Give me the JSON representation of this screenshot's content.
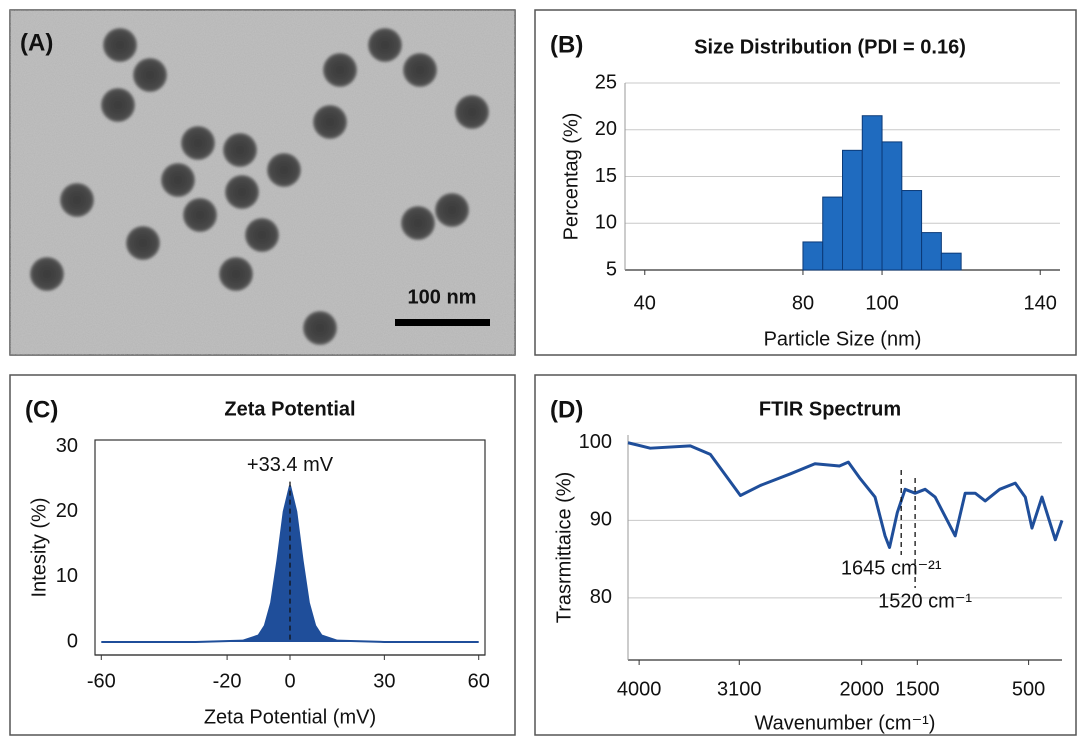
{
  "panel_a": {
    "label": "(A)",
    "scale_bar": "100 nm"
  },
  "chart_data": [
    {
      "type": "histogram",
      "label": "(B)",
      "title": "Size Distribution (PDI = 0.16)",
      "xlabel": "Particle Size (nm)",
      "ylabel": "Percentag (%)",
      "bins": [
        80,
        85,
        90,
        95,
        100,
        105,
        110,
        115,
        120
      ],
      "values": [
        8,
        12.8,
        17.8,
        21.5,
        18.7,
        13.5,
        9,
        6.8
      ],
      "color": "#1f6bbf",
      "xlim": [
        35,
        145
      ],
      "ylim": [
        5,
        25
      ],
      "xticks": [
        40,
        80,
        100,
        140
      ],
      "yticks": [
        5,
        10,
        15,
        20,
        25
      ],
      "grid": true
    },
    {
      "type": "area",
      "label": "(C)",
      "title": "Zeta Potential",
      "xlabel": "Zeta Potential (mV)",
      "ylabel": "Intesity (%)",
      "x": [
        -60,
        -30,
        -15,
        -10,
        -8,
        -6,
        -4,
        -2,
        0,
        2,
        4,
        6,
        8,
        10,
        15,
        30,
        60
      ],
      "values": [
        0,
        0,
        0.2,
        1,
        2.5,
        6,
        12.5,
        20,
        24,
        20,
        12.5,
        6,
        2.5,
        1,
        0.2,
        0,
        0
      ],
      "color": "#1f4e9a",
      "xlim": [
        -62,
        62
      ],
      "ylim": [
        -2,
        31
      ],
      "xticks": [
        -60,
        -20,
        0,
        30,
        60
      ],
      "yticks": [
        0,
        10,
        20,
        30
      ],
      "grid": false,
      "annotations": [
        {
          "text": "+33.4 mV"
        }
      ]
    },
    {
      "type": "line",
      "label": "(D)",
      "title": "FTIR Spectrum",
      "xlabel": "Wavenumber (cm⁻¹)",
      "ylabel": "Trasrmittaice (%)",
      "x": [
        4100,
        3900,
        3540,
        3360,
        3090,
        2910,
        2640,
        2420,
        2200,
        2120,
        2020,
        1880,
        1790,
        1750,
        1680,
        1610,
        1520,
        1430,
        1340,
        1250,
        1160,
        1070,
        980,
        890,
        760,
        620,
        530,
        470,
        380,
        260,
        200
      ],
      "values": [
        100,
        99.3,
        99.6,
        98.5,
        93.2,
        94.5,
        96,
        97.3,
        97,
        97.5,
        95.5,
        93,
        88,
        86.5,
        91,
        94,
        93.5,
        94,
        93,
        90.5,
        88,
        93.5,
        93.5,
        92.5,
        94,
        94.8,
        93,
        89,
        93,
        87.5,
        90
      ],
      "color": "#1f4e9a",
      "xlim": [
        4100,
        200
      ],
      "ylim": [
        72,
        101
      ],
      "xticks": [
        4000,
        3100,
        2000,
        1500,
        500
      ],
      "yticks": [
        80,
        90,
        100
      ],
      "grid": true,
      "annotations": [
        {
          "text": "1645 cm⁻²¹",
          "x": 1645
        },
        {
          "text": "1520 cm⁻¹",
          "x": 1520
        }
      ]
    }
  ]
}
